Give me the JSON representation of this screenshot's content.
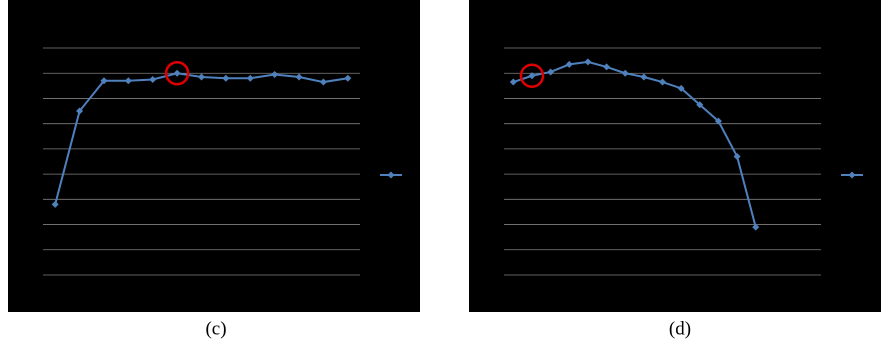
{
  "chart_data": [
    {
      "type": "line",
      "caption": "(c)",
      "categories": [
        null,
        null,
        null,
        null,
        null,
        null,
        null,
        null,
        null,
        null,
        null,
        null,
        null
      ],
      "series": [
        {
          "color": "#4f81bd",
          "values": [
            2.8,
            6.5,
            7.7,
            7.7,
            7.75,
            8.0,
            7.85,
            7.8,
            7.8,
            7.95,
            7.85,
            7.65,
            7.8
          ]
        }
      ],
      "ylim": [
        0,
        9
      ],
      "yticks": [
        0,
        1,
        2,
        3,
        4,
        5,
        6,
        7,
        8,
        9
      ],
      "grid": true,
      "legend": "right",
      "highlight": 5,
      "highlight_color": "#e00000"
    },
    {
      "type": "line",
      "caption": "(d)",
      "categories": [
        null,
        null,
        null,
        null,
        null,
        null,
        null,
        null,
        null,
        null,
        null,
        null,
        null,
        null,
        null,
        null,
        null
      ],
      "series": [
        {
          "color": "#4f81bd",
          "values": [
            7.65,
            7.9,
            8.05,
            8.35,
            8.45,
            8.25,
            8.0,
            7.85,
            7.65,
            7.4,
            6.75,
            6.1,
            4.7,
            1.9,
            null,
            null,
            null
          ]
        }
      ],
      "ylim": [
        0,
        9
      ],
      "yticks": [
        0,
        1,
        2,
        3,
        4,
        5,
        6,
        7,
        8,
        9
      ],
      "grid": true,
      "legend": "right",
      "highlight": 1,
      "highlight_color": "#e00000"
    }
  ]
}
